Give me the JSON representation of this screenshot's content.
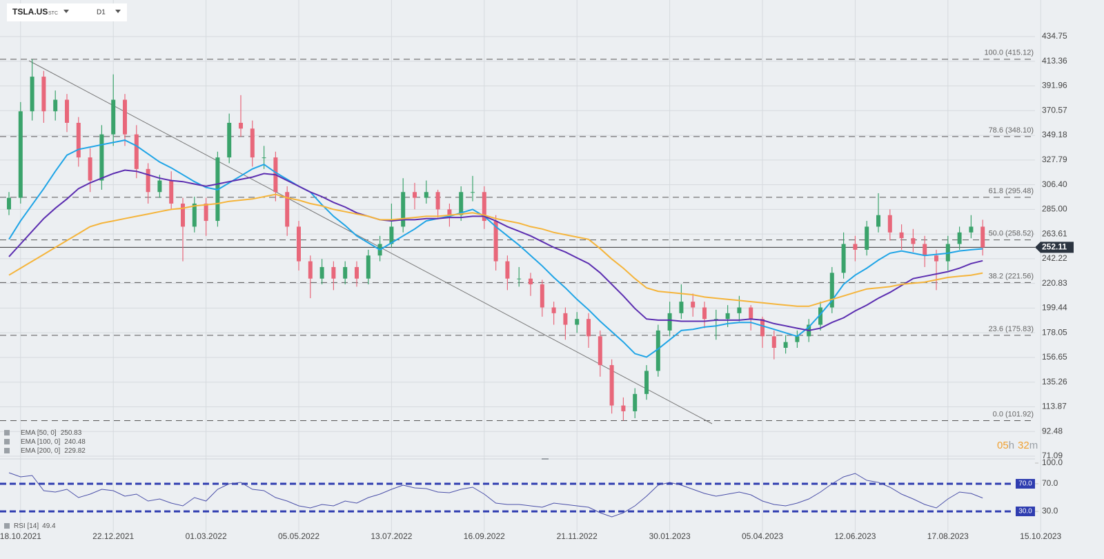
{
  "header": {
    "symbol": "TSLA.US",
    "market": "STC",
    "interval": "D1"
  },
  "chart_data": [
    {
      "type": "candlestick",
      "categories": [
        null,
        "18.10.2021",
        null,
        null,
        null,
        null,
        null,
        null,
        null,
        "22.12.2021",
        null,
        null,
        null,
        null,
        null,
        null,
        null,
        "01.03.2022",
        null,
        null,
        null,
        null,
        null,
        null,
        null,
        "05.05.2022",
        null,
        null,
        null,
        null,
        null,
        null,
        null,
        "13.07.2022",
        null,
        null,
        null,
        null,
        null,
        null,
        null,
        "16.09.2022",
        null,
        null,
        null,
        null,
        null,
        null,
        null,
        "21.11.2022",
        null,
        null,
        null,
        null,
        null,
        null,
        null,
        "30.01.2023",
        null,
        null,
        null,
        null,
        null,
        null,
        null,
        "05.04.2023",
        null,
        null,
        null,
        null,
        null,
        null,
        null,
        "12.06.2023",
        null,
        null,
        null,
        null,
        null,
        null,
        null,
        "17.08.2023",
        null,
        null,
        null,
        null,
        null,
        null,
        null,
        "15.10.2023"
      ],
      "open": [
        285,
        295,
        370,
        400,
        370,
        380,
        360,
        330,
        310,
        350,
        380,
        350,
        320,
        300,
        310,
        290,
        270,
        290,
        275,
        330,
        360,
        355,
        330,
        330,
        300,
        270,
        240,
        225,
        235,
        225,
        235,
        225,
        245,
        255,
        270,
        300,
        295,
        300,
        285,
        280,
        300,
        300,
        275,
        240,
        225,
        225,
        220,
        200,
        195,
        185,
        190,
        175,
        150,
        115,
        110,
        125,
        145,
        180,
        195,
        205,
        200,
        190,
        190,
        195,
        200,
        190,
        175,
        165,
        170,
        175,
        185,
        200,
        230,
        255,
        250,
        270,
        280,
        265,
        260,
        255,
        245,
        240,
        255,
        265,
        270,
        null,
        null,
        null,
        null,
        null
      ],
      "high": [
        300,
        378,
        415.12,
        405,
        388,
        385,
        365,
        338,
        358,
        402,
        385,
        358,
        325,
        315,
        318,
        295,
        296,
        295,
        335,
        368,
        384,
        362,
        340,
        335,
        305,
        275,
        245,
        242,
        240,
        240,
        240,
        250,
        262,
        290,
        312,
        308,
        310,
        302,
        290,
        305,
        314,
        305,
        280,
        245,
        235,
        230,
        224,
        205,
        200,
        196,
        195,
        180,
        155,
        122,
        130,
        150,
        185,
        205,
        220,
        212,
        205,
        198,
        202,
        210,
        202,
        192,
        180,
        176,
        180,
        190,
        205,
        235,
        265,
        262,
        275,
        299,
        285,
        272,
        268,
        262,
        250,
        262,
        270,
        280,
        276,
        null,
        null,
        null,
        null,
        null
      ],
      "low": [
        280,
        290,
        362,
        360,
        362,
        352,
        322,
        300,
        302,
        340,
        340,
        312,
        290,
        295,
        285,
        240,
        265,
        262,
        270,
        325,
        348,
        322,
        320,
        292,
        262,
        232,
        208,
        220,
        215,
        220,
        218,
        220,
        240,
        252,
        265,
        285,
        290,
        278,
        270,
        275,
        292,
        268,
        232,
        215,
        218,
        210,
        192,
        185,
        172,
        178,
        165,
        140,
        108,
        101.92,
        104,
        120,
        140,
        175,
        190,
        192,
        182,
        172,
        183,
        188,
        180,
        165,
        155,
        160,
        165,
        170,
        180,
        195,
        225,
        240,
        245,
        265,
        258,
        250,
        248,
        235,
        215,
        232,
        250,
        260,
        245,
        null,
        null,
        null,
        null,
        null
      ],
      "close": [
        295,
        370,
        400,
        370,
        380,
        360,
        330,
        310,
        350,
        380,
        350,
        320,
        300,
        310,
        290,
        270,
        290,
        275,
        330,
        360,
        355,
        330,
        330,
        300,
        270,
        240,
        225,
        235,
        225,
        235,
        225,
        245,
        255,
        270,
        300,
        295,
        300,
        285,
        280,
        300,
        300,
        275,
        240,
        225,
        225,
        220,
        200,
        195,
        185,
        190,
        175,
        150,
        115,
        110,
        125,
        145,
        180,
        195,
        205,
        200,
        190,
        190,
        195,
        200,
        190,
        175,
        165,
        170,
        175,
        185,
        200,
        230,
        255,
        250,
        270,
        280,
        265,
        260,
        255,
        245,
        240,
        255,
        265,
        270,
        252.11,
        null,
        null,
        null,
        null,
        null
      ],
      "up_color": "#3aa36b",
      "down_color": "#e8677a",
      "series": [
        {
          "name": "EMA [50, 0]",
          "color": "#1ea4e6",
          "values": [
            259,
            275,
            289,
            303,
            318,
            332,
            337,
            339,
            341,
            343,
            345,
            340,
            333,
            326,
            321,
            315,
            309,
            304,
            302,
            308,
            314,
            320,
            324,
            317,
            311,
            305,
            300,
            289,
            279,
            271,
            262,
            256,
            250,
            256,
            262,
            268,
            275,
            277,
            279,
            282,
            285,
            279,
            270,
            262,
            254,
            245,
            236,
            226,
            217,
            207,
            198,
            188,
            179,
            170,
            160,
            157,
            164,
            172,
            180,
            181,
            183,
            184,
            186,
            187,
            187,
            184,
            181,
            178,
            175,
            183,
            194,
            206,
            220,
            228,
            234,
            241,
            247,
            249,
            247,
            245,
            246,
            247,
            249,
            250,
            250.83,
            null,
            null,
            null,
            null,
            null
          ]
        },
        {
          "name": "EMA [100, 0]",
          "color": "#5b2db0",
          "values": [
            244,
            255,
            266,
            277,
            286,
            294,
            303,
            308,
            312,
            316,
            319,
            318,
            315,
            312,
            310,
            309,
            307,
            305,
            307,
            309,
            311,
            313,
            316,
            315,
            310,
            305,
            300,
            296,
            291,
            287,
            282,
            279,
            276,
            275,
            276,
            276,
            277,
            277,
            278,
            278,
            279,
            279,
            275,
            270,
            266,
            262,
            257,
            252,
            248,
            243,
            238,
            230,
            220,
            210,
            199,
            190,
            189,
            189,
            188,
            188,
            188,
            189,
            189,
            189,
            190,
            189,
            186,
            184,
            182,
            180,
            182,
            187,
            191,
            197,
            202,
            208,
            213,
            219,
            225,
            227,
            229,
            231,
            234,
            238,
            240.48,
            null,
            null,
            null,
            null,
            null
          ]
        },
        {
          "name": "EMA [200, 0]",
          "color": "#f5b43a",
          "values": [
            228,
            234,
            240,
            246,
            252,
            258,
            264,
            270,
            273,
            275,
            277,
            279,
            281,
            283,
            285,
            286,
            288,
            289,
            290,
            292,
            293,
            294,
            296,
            298,
            295,
            293,
            290,
            288,
            285,
            283,
            281,
            279,
            276,
            276,
            277,
            278,
            279,
            279,
            280,
            281,
            282,
            280,
            277,
            275,
            273,
            270,
            268,
            265,
            263,
            261,
            259,
            251,
            242,
            234,
            225,
            217,
            214,
            213,
            212,
            211,
            209,
            208,
            207,
            206,
            205,
            204,
            203,
            202,
            201,
            201,
            204,
            207,
            210,
            213,
            216,
            217,
            218,
            220,
            221,
            222,
            224,
            226,
            227,
            228,
            229.82,
            null,
            null,
            null,
            null,
            null
          ]
        }
      ],
      "ylim": [
        71.09,
        434.75
      ],
      "yticks": [
        434.75,
        413.36,
        391.96,
        370.57,
        349.18,
        327.79,
        {
          "value": 306.4,
          "label": "306.40"
        },
        {
          "value": 285,
          "label": "285.00"
        },
        263.61,
        242.22,
        220.83,
        199.44,
        178.05,
        156.65,
        135.26,
        113.87,
        92.48,
        71.09
      ],
      "grid": true,
      "levels": [
        {
          "value": 415.12,
          "label": "100.0 (415.12)"
        },
        {
          "value": 348.1,
          "label": "78.6 (348.10)"
        },
        {
          "value": 295.48,
          "label": "61.8 (295.48)"
        },
        {
          "value": 258.52,
          "label": "50.0 (258.52)"
        },
        {
          "value": 221.56,
          "label": "38.2 (221.56)"
        },
        {
          "value": 175.83,
          "label": "23.6 (175.83)"
        },
        {
          "value": 101.92,
          "label": "0.0 (101.92)"
        }
      ],
      "countdown": [
        "05",
        "h",
        "32",
        "m"
      ]
    },
    {
      "type": "line",
      "series": [
        {
          "name": "RSI [14]",
          "color": "#4a4fa8",
          "values": [
            86,
            80,
            82,
            60,
            58,
            62,
            50,
            55,
            62,
            60,
            52,
            55,
            45,
            48,
            42,
            38,
            50,
            45,
            62,
            70,
            72,
            62,
            60,
            50,
            45,
            38,
            35,
            40,
            38,
            45,
            42,
            50,
            55,
            62,
            68,
            64,
            63,
            58,
            57,
            62,
            65,
            55,
            42,
            40,
            40,
            38,
            36,
            42,
            40,
            38,
            36,
            28,
            22,
            28,
            38,
            52,
            68,
            72,
            68,
            62,
            56,
            52,
            55,
            58,
            54,
            45,
            40,
            38,
            42,
            48,
            58,
            70,
            80,
            85,
            75,
            72,
            65,
            55,
            48,
            40,
            35,
            48,
            58,
            56,
            49.4,
            null,
            null,
            null,
            null,
            null
          ]
        }
      ],
      "ylim": [
        0,
        100
      ],
      "yticks": [
        {
          "value": 100,
          "label": "100.0"
        },
        {
          "value": 70,
          "label": "70.0"
        },
        {
          "value": 30,
          "label": "30.0"
        }
      ],
      "levels": [
        {
          "value": 70,
          "label": "70.0"
        },
        {
          "value": 30,
          "label": "30.0"
        }
      ],
      "level_color": "#2f3db0"
    }
  ]
}
